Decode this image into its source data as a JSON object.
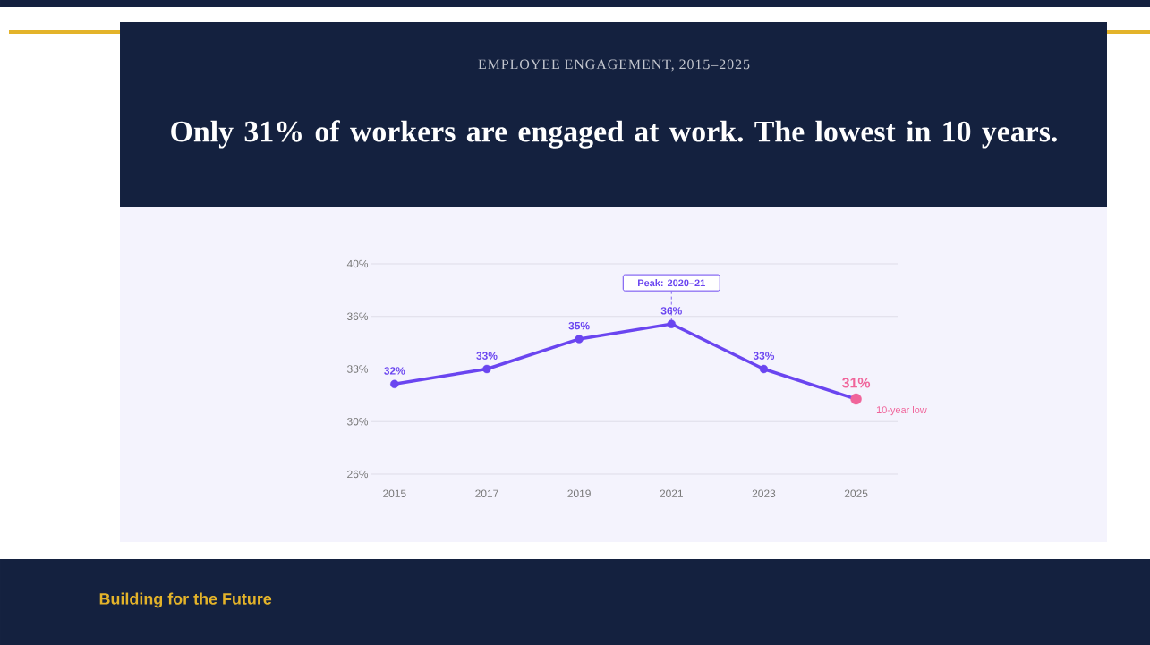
{
  "chart_data": {
    "type": "line",
    "title": "Only 31% of workers are engaged at work. The lowest in 10 years.",
    "subtitle": "EMPLOYEE ENGAGEMENT, 2015–2025",
    "categories": [
      "2015",
      "2017",
      "2019",
      "2021",
      "2023",
      "2025"
    ],
    "series": [
      {
        "color": "#6a45f0",
        "colors": [
          "#6a45f0",
          "#6a45f0",
          "#6a45f0",
          "#6a45f0",
          "#6a45f0",
          "#f0649a"
        ],
        "values": [
          32,
          33,
          35,
          36,
          33,
          31
        ],
        "value_labels": [
          "32%",
          "33%",
          "35%",
          "36%",
          "33%",
          "31%"
        ]
      }
    ],
    "ylim": [
      26,
      40
    ],
    "yticks": [
      {
        "value": 26,
        "label": "26%"
      },
      {
        "value": 29.5,
        "label": "30%"
      },
      {
        "value": 33,
        "label": "33%"
      },
      {
        "value": 36.5,
        "label": "36%"
      },
      {
        "value": 40,
        "label": "40%"
      }
    ],
    "grid": "y",
    "marker": "circle",
    "line_style": "solid",
    "annotations": [
      {
        "text": "Peak: 2020–21",
        "x": "2021",
        "y": 36
      },
      {
        "text": "10-year low",
        "x": "2025",
        "y": 31
      },
      "Building for the Future"
    ]
  }
}
